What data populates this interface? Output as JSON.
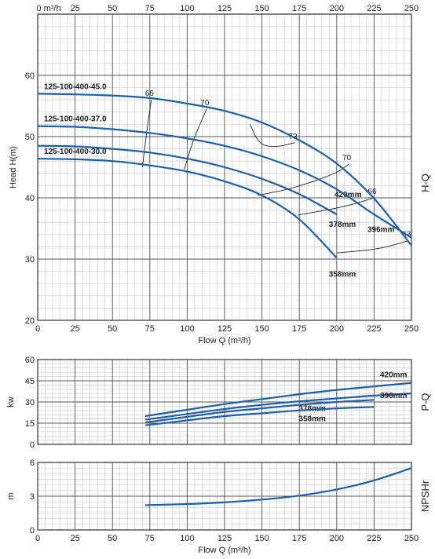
{
  "chart_data": [
    {
      "name": "hq",
      "type": "line",
      "xlabel": "Flow Q (m³/h)",
      "ylabel": "Head H(m)",
      "side_label": "H-Q",
      "top_axis_unit": "m³/h",
      "xlim": [
        0,
        250
      ],
      "ylim": [
        20,
        70
      ],
      "x_ticks": [
        "0",
        "25",
        "50",
        "75",
        "100",
        "125",
        "150",
        "175",
        "200",
        "225",
        "250"
      ],
      "y_ticks": [
        "20",
        "30",
        "40",
        "50",
        "60"
      ],
      "grid": true,
      "series": [
        {
          "name": "420mm",
          "label": "125-100-400-45.0",
          "color": "#1f5fa8",
          "x": [
            0,
            25,
            50,
            75,
            100,
            125,
            150,
            175,
            200,
            225,
            250
          ],
          "y": [
            57.0,
            56.9,
            56.7,
            56.3,
            55.4,
            54.2,
            52.3,
            49.4,
            45.6,
            39.9,
            32.2
          ]
        },
        {
          "name": "396mm",
          "label": "125-100-400-37.0",
          "color": "#1f5fa8",
          "x": [
            0,
            25,
            50,
            75,
            100,
            125,
            150,
            175,
            200,
            225,
            250
          ],
          "y": [
            51.7,
            51.6,
            51.2,
            50.6,
            49.7,
            48.5,
            46.8,
            44.5,
            41.4,
            37.3,
            33.5
          ]
        },
        {
          "name": "378mm",
          "color": "#1f5fa8",
          "x": [
            0,
            25,
            50,
            75,
            100,
            125,
            150,
            175,
            200
          ],
          "y": [
            48.5,
            48.4,
            48.0,
            47.4,
            46.4,
            45.0,
            43.1,
            40.6,
            37.3
          ]
        },
        {
          "name": "358mm",
          "label": "125-100-400-30.0",
          "color": "#1f5fa8",
          "x": [
            0,
            25,
            50,
            75,
            100,
            125,
            150,
            175,
            200
          ],
          "y": [
            46.4,
            46.3,
            46.0,
            45.3,
            44.3,
            42.7,
            40.4,
            36.5,
            30.2
          ]
        }
      ],
      "efficiency_lines": [
        {
          "label": "66",
          "x": [
            70,
            73,
            76
          ],
          "y": [
            45.0,
            51.0,
            56.0
          ]
        },
        {
          "label": "70",
          "x": [
            98,
            104,
            113
          ],
          "y": [
            44.6,
            49.5,
            54.5
          ]
        },
        {
          "label": "73",
          "x": [
            142,
            148,
            158,
            172
          ],
          "y": [
            52.0,
            48.8,
            48.2,
            49.0
          ]
        },
        {
          "label": "70",
          "x": [
            147,
            170,
            200,
            208
          ],
          "y": [
            40.4,
            41.5,
            44.0,
            45.5
          ]
        },
        {
          "label": "66",
          "x": [
            174,
            205,
            225
          ],
          "y": [
            37.2,
            38.5,
            40.0
          ]
        },
        {
          "label": "63",
          "x": [
            200,
            228,
            248
          ],
          "y": [
            31.0,
            31.6,
            33.0
          ]
        }
      ]
    },
    {
      "name": "pq",
      "type": "line",
      "ylabel": "kw",
      "side_label": "P-Q",
      "xlim": [
        0,
        250
      ],
      "ylim": [
        0,
        60
      ],
      "y_ticks": [
        "0",
        "15",
        "30",
        "45",
        "60"
      ],
      "grid": true,
      "series": [
        {
          "name": "420mm",
          "color": "#1f5fa8",
          "x": [
            72,
            100,
            125,
            150,
            175,
            200,
            225,
            250
          ],
          "y": [
            20.0,
            24.5,
            28.5,
            32.0,
            35.5,
            38.5,
            41.0,
            43.5
          ]
        },
        {
          "name": "396mm",
          "color": "#1f5fa8",
          "x": [
            72,
            100,
            125,
            150,
            175,
            200,
            225,
            250
          ],
          "y": [
            17.5,
            21.5,
            25.0,
            28.0,
            30.5,
            32.5,
            34.5,
            36.0
          ]
        },
        {
          "name": "378mm",
          "color": "#1f5fa8",
          "x": [
            72,
            100,
            125,
            150,
            175,
            200,
            225
          ],
          "y": [
            15.5,
            19.5,
            23.0,
            25.5,
            28.0,
            30.0,
            31.5
          ]
        },
        {
          "name": "358mm",
          "color": "#1f5fa8",
          "x": [
            72,
            100,
            125,
            150,
            175,
            200,
            225
          ],
          "y": [
            13.5,
            17.0,
            20.0,
            22.0,
            24.0,
            25.5,
            26.5
          ]
        }
      ]
    },
    {
      "name": "npsh",
      "type": "line",
      "xlabel": "Flow Q (m³/h)",
      "ylabel": "m",
      "side_label": "NPSHr",
      "xlim": [
        0,
        250
      ],
      "ylim": [
        0,
        6
      ],
      "x_ticks": [
        "0",
        "25",
        "50",
        "75",
        "100",
        "125",
        "150",
        "175",
        "200",
        "225",
        "250"
      ],
      "y_ticks": [
        "0",
        "3",
        "6"
      ],
      "grid": true,
      "series": [
        {
          "name": "NPSHr",
          "color": "#1f5fa8",
          "x": [
            72,
            100,
            125,
            150,
            175,
            200,
            225,
            250
          ],
          "y": [
            2.2,
            2.3,
            2.45,
            2.7,
            3.05,
            3.6,
            4.4,
            5.5
          ]
        }
      ]
    }
  ]
}
